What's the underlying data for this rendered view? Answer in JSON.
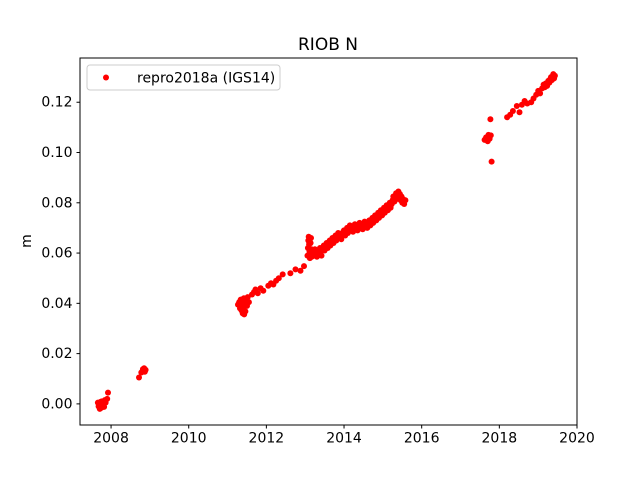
{
  "figure": {
    "title": "RIOB N",
    "ylabel": "m"
  },
  "chart_data": {
    "type": "scatter",
    "title": "RIOB N",
    "xlabel": "",
    "ylabel": "m",
    "grid": false,
    "legend_position": "upper left",
    "xlim": [
      2007.2,
      2020.0
    ],
    "ylim": [
      -0.0084,
      0.1376
    ],
    "x_ticks": [
      2008,
      2010,
      2012,
      2014,
      2016,
      2018,
      2020
    ],
    "x_tick_labels": [
      "2008",
      "2010",
      "2012",
      "2014",
      "2016",
      "2018",
      "2020"
    ],
    "y_ticks": [
      0.0,
      0.02,
      0.04,
      0.06,
      0.08,
      0.1,
      0.12
    ],
    "y_tick_labels": [
      "0.00",
      "0.02",
      "0.04",
      "0.06",
      "0.08",
      "0.10",
      "0.12"
    ],
    "colors": {
      "marker": "#ff0000",
      "text": "#000000",
      "legend_border": "#cccccc",
      "background": "#ffffff",
      "spine": "#000000"
    },
    "marker_size_px": 3,
    "series": [
      {
        "name": "repro2018a (IGS14)",
        "color": "#ff0000",
        "points": [
          [
            2007.66,
            0.0005
          ],
          [
            2007.68,
            -0.001
          ],
          [
            2007.7,
            0.0
          ],
          [
            2007.71,
            -0.002
          ],
          [
            2007.73,
            0.0008
          ],
          [
            2007.75,
            -0.0015
          ],
          [
            2007.76,
            0.001
          ],
          [
            2007.78,
            -0.0005
          ],
          [
            2007.8,
            0.0
          ],
          [
            2007.82,
            -0.0012
          ],
          [
            2007.84,
            0.0015
          ],
          [
            2007.86,
            0.0005
          ],
          [
            2007.9,
            0.002
          ],
          [
            2007.92,
            0.0045
          ],
          [
            2008.72,
            0.0105
          ],
          [
            2008.78,
            0.0125
          ],
          [
            2008.82,
            0.0138
          ],
          [
            2008.85,
            0.0142
          ],
          [
            2008.87,
            0.0128
          ],
          [
            2008.89,
            0.0135
          ],
          [
            2011.27,
            0.0395
          ],
          [
            2011.3,
            0.0405
          ],
          [
            2011.32,
            0.038
          ],
          [
            2011.34,
            0.0415
          ],
          [
            2011.36,
            0.0372
          ],
          [
            2011.38,
            0.04
          ],
          [
            2011.39,
            0.036
          ],
          [
            2011.4,
            0.0385
          ],
          [
            2011.42,
            0.042
          ],
          [
            2011.43,
            0.0356
          ],
          [
            2011.44,
            0.0395
          ],
          [
            2011.46,
            0.0368
          ],
          [
            2011.48,
            0.041
          ],
          [
            2011.5,
            0.039
          ],
          [
            2011.52,
            0.0425
          ],
          [
            2011.55,
            0.0405
          ],
          [
            2011.63,
            0.0435
          ],
          [
            2011.68,
            0.0445
          ],
          [
            2011.72,
            0.0455
          ],
          [
            2011.78,
            0.044
          ],
          [
            2011.85,
            0.046
          ],
          [
            2011.92,
            0.045
          ],
          [
            2012.05,
            0.047
          ],
          [
            2012.12,
            0.048
          ],
          [
            2012.18,
            0.0475
          ],
          [
            2012.25,
            0.049
          ],
          [
            2012.32,
            0.05
          ],
          [
            2012.42,
            0.0515
          ],
          [
            2012.62,
            0.052
          ],
          [
            2012.75,
            0.0535
          ],
          [
            2012.88,
            0.053
          ],
          [
            2012.97,
            0.0548
          ],
          [
            2013.06,
            0.059
          ],
          [
            2013.07,
            0.062
          ],
          [
            2013.08,
            0.065
          ],
          [
            2013.09,
            0.0665
          ],
          [
            2013.1,
            0.0635
          ],
          [
            2013.11,
            0.0605
          ],
          [
            2013.12,
            0.058
          ],
          [
            2013.13,
            0.061
          ],
          [
            2013.14,
            0.064
          ],
          [
            2013.15,
            0.066
          ],
          [
            2013.16,
            0.0615
          ],
          [
            2013.17,
            0.0585
          ],
          [
            2013.18,
            0.06
          ],
          [
            2013.2,
            0.0605
          ],
          [
            2013.23,
            0.059
          ],
          [
            2013.25,
            0.0615
          ],
          [
            2013.28,
            0.06
          ],
          [
            2013.3,
            0.0585
          ],
          [
            2013.33,
            0.061
          ],
          [
            2013.35,
            0.0595
          ],
          [
            2013.38,
            0.062
          ],
          [
            2013.4,
            0.0605
          ],
          [
            2013.42,
            0.059
          ],
          [
            2013.45,
            0.0615
          ],
          [
            2013.48,
            0.063
          ],
          [
            2013.5,
            0.061
          ],
          [
            2013.53,
            0.0625
          ],
          [
            2013.55,
            0.064
          ],
          [
            2013.58,
            0.062
          ],
          [
            2013.6,
            0.0635
          ],
          [
            2013.63,
            0.065
          ],
          [
            2013.65,
            0.063
          ],
          [
            2013.68,
            0.0645
          ],
          [
            2013.7,
            0.066
          ],
          [
            2013.73,
            0.064
          ],
          [
            2013.75,
            0.0655
          ],
          [
            2013.78,
            0.067
          ],
          [
            2013.8,
            0.065
          ],
          [
            2013.83,
            0.0665
          ],
          [
            2013.85,
            0.068
          ],
          [
            2013.88,
            0.066
          ],
          [
            2013.9,
            0.0675
          ],
          [
            2013.93,
            0.0655
          ],
          [
            2013.95,
            0.067
          ],
          [
            2013.98,
            0.0685
          ],
          [
            2014.0,
            0.069
          ],
          [
            2014.03,
            0.067
          ],
          [
            2014.05,
            0.0685
          ],
          [
            2014.08,
            0.07
          ],
          [
            2014.1,
            0.068
          ],
          [
            2014.13,
            0.0695
          ],
          [
            2014.15,
            0.071
          ],
          [
            2014.18,
            0.069
          ],
          [
            2014.2,
            0.0705
          ],
          [
            2014.23,
            0.0685
          ],
          [
            2014.25,
            0.07
          ],
          [
            2014.28,
            0.0715
          ],
          [
            2014.3,
            0.0695
          ],
          [
            2014.33,
            0.071
          ],
          [
            2014.35,
            0.069
          ],
          [
            2014.38,
            0.0705
          ],
          [
            2014.4,
            0.072
          ],
          [
            2014.43,
            0.07
          ],
          [
            2014.45,
            0.0715
          ],
          [
            2014.48,
            0.0695
          ],
          [
            2014.5,
            0.071
          ],
          [
            2014.53,
            0.0725
          ],
          [
            2014.55,
            0.0705
          ],
          [
            2014.58,
            0.072
          ],
          [
            2014.6,
            0.07
          ],
          [
            2014.63,
            0.0715
          ],
          [
            2014.65,
            0.073
          ],
          [
            2014.68,
            0.071
          ],
          [
            2014.7,
            0.0725
          ],
          [
            2014.73,
            0.074
          ],
          [
            2014.75,
            0.072
          ],
          [
            2014.78,
            0.0735
          ],
          [
            2014.8,
            0.075
          ],
          [
            2014.83,
            0.073
          ],
          [
            2014.85,
            0.0745
          ],
          [
            2014.88,
            0.076
          ],
          [
            2014.9,
            0.074
          ],
          [
            2014.93,
            0.0755
          ],
          [
            2014.95,
            0.077
          ],
          [
            2014.98,
            0.075
          ],
          [
            2015.0,
            0.0765
          ],
          [
            2015.03,
            0.078
          ],
          [
            2015.05,
            0.076
          ],
          [
            2015.08,
            0.0775
          ],
          [
            2015.1,
            0.079
          ],
          [
            2015.13,
            0.077
          ],
          [
            2015.15,
            0.0785
          ],
          [
            2015.18,
            0.08
          ],
          [
            2015.2,
            0.078
          ],
          [
            2015.23,
            0.0795
          ],
          [
            2015.25,
            0.081
          ],
          [
            2015.27,
            0.0825
          ],
          [
            2015.3,
            0.0805
          ],
          [
            2015.32,
            0.082
          ],
          [
            2015.34,
            0.0838
          ],
          [
            2015.36,
            0.0815
          ],
          [
            2015.38,
            0.083
          ],
          [
            2015.4,
            0.0845
          ],
          [
            2015.42,
            0.082
          ],
          [
            2015.44,
            0.0835
          ],
          [
            2015.46,
            0.081
          ],
          [
            2015.48,
            0.0825
          ],
          [
            2015.5,
            0.08
          ],
          [
            2015.52,
            0.0815
          ],
          [
            2015.55,
            0.0795
          ],
          [
            2015.58,
            0.081
          ],
          [
            2017.62,
            0.105
          ],
          [
            2017.66,
            0.106
          ],
          [
            2017.7,
            0.1045
          ],
          [
            2017.72,
            0.107
          ],
          [
            2017.75,
            0.1055
          ],
          [
            2017.78,
            0.1068
          ],
          [
            2017.77,
            0.1132
          ],
          [
            2017.8,
            0.0964
          ],
          [
            2018.2,
            0.114
          ],
          [
            2018.28,
            0.115
          ],
          [
            2018.35,
            0.1165
          ],
          [
            2018.45,
            0.1185
          ],
          [
            2018.52,
            0.116
          ],
          [
            2018.58,
            0.119
          ],
          [
            2018.65,
            0.1205
          ],
          [
            2018.72,
            0.1195
          ],
          [
            2018.82,
            0.12
          ],
          [
            2018.88,
            0.1215
          ],
          [
            2018.95,
            0.123
          ],
          [
            2019.0,
            0.1245
          ],
          [
            2019.05,
            0.1235
          ],
          [
            2019.1,
            0.1255
          ],
          [
            2019.14,
            0.127
          ],
          [
            2019.17,
            0.126
          ],
          [
            2019.2,
            0.1275
          ],
          [
            2019.23,
            0.1265
          ],
          [
            2019.26,
            0.1285
          ],
          [
            2019.29,
            0.1278
          ],
          [
            2019.31,
            0.1292
          ],
          [
            2019.33,
            0.13
          ],
          [
            2019.35,
            0.1288
          ],
          [
            2019.37,
            0.1302
          ],
          [
            2019.39,
            0.1312
          ],
          [
            2019.41,
            0.1295
          ],
          [
            2019.43,
            0.1305
          ]
        ]
      }
    ]
  }
}
